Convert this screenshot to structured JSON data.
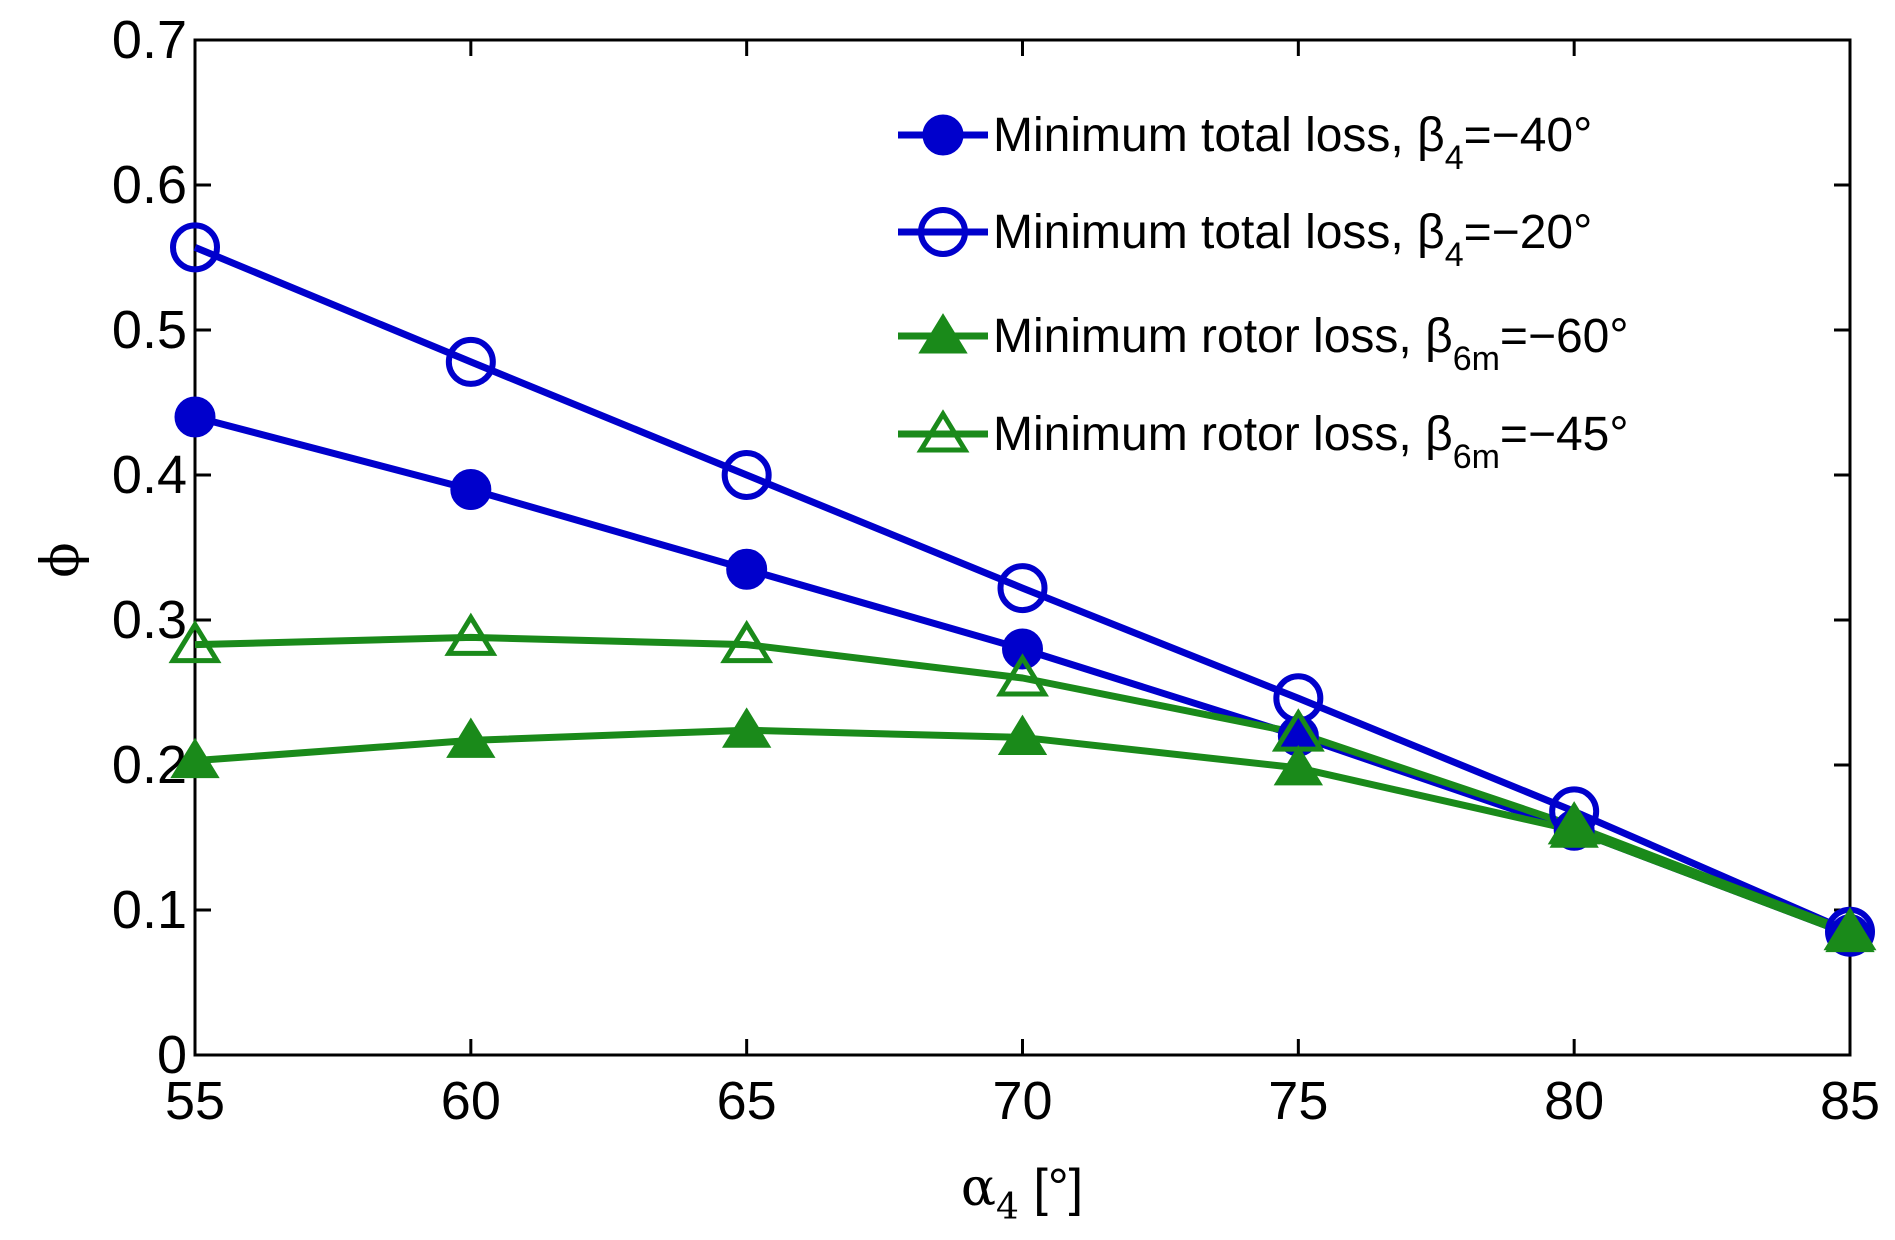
{
  "chart_data": {
    "type": "line",
    "x": [
      55,
      60,
      65,
      70,
      75,
      80,
      85
    ],
    "xlim": [
      55,
      85
    ],
    "ylim": [
      0,
      0.7
    ],
    "xticks": [
      "55",
      "60",
      "65",
      "70",
      "75",
      "80",
      "85"
    ],
    "yticks": [
      "0",
      "0.1",
      "0.2",
      "0.3",
      "0.4",
      "0.5",
      "0.6",
      "0.7"
    ],
    "xlabel": {
      "symbol": "α",
      "sub": "4",
      "unit": " [°]"
    },
    "ylabel": "ϕ",
    "legend_position": "top-right",
    "series": [
      {
        "name": "Minimum total loss, β4=−40°",
        "label_main": "Minimum total loss, β",
        "label_sub": "4",
        "label_tail": "=−40°",
        "color": "#0000CC",
        "marker": "filled-circle",
        "values": [
          0.44,
          0.39,
          0.335,
          0.28,
          0.22,
          0.155,
          0.083
        ]
      },
      {
        "name": "Minimum total loss, β4=−20°",
        "label_main": "Minimum total loss, β",
        "label_sub": "4",
        "label_tail": "=−20°",
        "color": "#0000CC",
        "marker": "open-circle",
        "values": [
          0.557,
          0.478,
          0.4,
          0.322,
          0.246,
          0.168,
          0.085
        ]
      },
      {
        "name": "Minimum rotor loss, β6m=−60°",
        "label_main": "Minimum rotor loss, β",
        "label_sub": "6m",
        "label_tail": "=−60°",
        "color": "#1A8A1A",
        "marker": "filled-triangle",
        "values": [
          0.203,
          0.217,
          0.224,
          0.219,
          0.198,
          0.155,
          0.083
        ]
      },
      {
        "name": "Minimum rotor loss, β6m=−45°",
        "label_main": "Minimum rotor loss, β",
        "label_sub": "6m",
        "label_tail": "=−45°",
        "color": "#1A8A1A",
        "marker": "open-triangle",
        "values": [
          0.283,
          0.288,
          0.283,
          0.26,
          0.222,
          0.158,
          0.085
        ]
      }
    ]
  }
}
